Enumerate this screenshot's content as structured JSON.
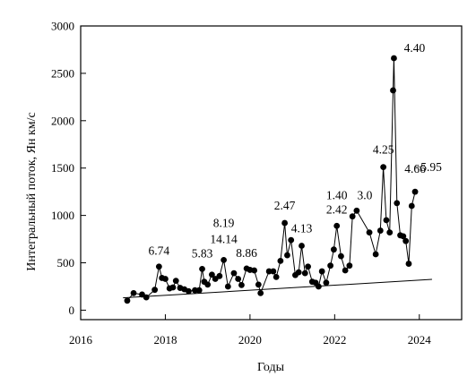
{
  "chart_data": {
    "type": "scatter",
    "title": "",
    "xlabel": "Годы",
    "ylabel": "Интегральный поток, Ян км/с",
    "xlim": [
      2016,
      2025
    ],
    "ylim": [
      -100,
      3000
    ],
    "xticks": [
      2016,
      2018,
      2020,
      2022,
      2024
    ],
    "xtick_labels": [
      "2016",
      "2018",
      "2020",
      "2022",
      "2024"
    ],
    "yticks": [
      0,
      500,
      1000,
      1500,
      2000,
      2500,
      3000
    ],
    "ytick_labels": [
      "0",
      "500",
      "1000",
      "1500",
      "2000",
      "2500",
      "3000"
    ],
    "grid": false,
    "legend": "none",
    "series": [
      {
        "points": [
          [
            2017.1,
            100
          ],
          [
            2017.25,
            180
          ],
          [
            2017.45,
            165
          ],
          [
            2017.55,
            135
          ],
          [
            2017.75,
            215
          ],
          [
            2017.85,
            460
          ],
          [
            2017.92,
            340
          ],
          [
            2018.0,
            330
          ],
          [
            2018.1,
            230
          ],
          [
            2018.18,
            240
          ],
          [
            2018.25,
            310
          ],
          [
            2018.35,
            235
          ],
          [
            2018.45,
            220
          ],
          [
            2018.55,
            200
          ],
          [
            2018.7,
            210
          ],
          [
            2018.8,
            210
          ],
          [
            2018.87,
            435
          ],
          [
            2018.92,
            300
          ],
          [
            2019.0,
            270
          ],
          [
            2019.1,
            375
          ],
          [
            2019.18,
            330
          ],
          [
            2019.28,
            360
          ],
          [
            2019.38,
            530
          ],
          [
            2019.48,
            250
          ],
          [
            2019.62,
            390
          ],
          [
            2019.72,
            330
          ],
          [
            2019.8,
            265
          ],
          [
            2019.92,
            440
          ],
          [
            2020.0,
            425
          ],
          [
            2020.1,
            420
          ],
          [
            2020.2,
            270
          ],
          [
            2020.25,
            180
          ],
          [
            2020.45,
            410
          ],
          [
            2020.55,
            410
          ],
          [
            2020.62,
            350
          ],
          [
            2020.72,
            520
          ],
          [
            2020.82,
            920
          ],
          [
            2020.88,
            580
          ],
          [
            2020.97,
            740
          ],
          [
            2021.07,
            370
          ],
          [
            2021.15,
            400
          ],
          [
            2021.22,
            680
          ],
          [
            2021.3,
            390
          ],
          [
            2021.37,
            460
          ],
          [
            2021.47,
            300
          ],
          [
            2021.55,
            290
          ],
          [
            2021.62,
            250
          ],
          [
            2021.7,
            410
          ],
          [
            2021.8,
            290
          ],
          [
            2021.9,
            470
          ],
          [
            2021.98,
            640
          ],
          [
            2022.05,
            890
          ],
          [
            2022.15,
            570
          ],
          [
            2022.25,
            420
          ],
          [
            2022.35,
            470
          ],
          [
            2022.42,
            990
          ],
          [
            2022.52,
            1050
          ],
          [
            2022.82,
            820
          ],
          [
            2022.97,
            590
          ],
          [
            2023.08,
            840
          ],
          [
            2023.15,
            1510
          ],
          [
            2023.22,
            950
          ],
          [
            2023.3,
            820
          ],
          [
            2023.38,
            2320
          ],
          [
            2023.4,
            2660
          ],
          [
            2023.47,
            1130
          ],
          [
            2023.55,
            790
          ],
          [
            2023.62,
            780
          ],
          [
            2023.68,
            730
          ],
          [
            2023.75,
            490
          ],
          [
            2023.82,
            1100
          ],
          [
            2023.9,
            1250
          ]
        ]
      }
    ],
    "trend_line": {
      "x": [
        2017.0,
        2024.3
      ],
      "y": [
        130,
        325
      ]
    },
    "annotations": [
      {
        "text": "6.74",
        "x": 2017.85,
        "y": 460
      },
      {
        "text": "5.83",
        "x": 2018.87,
        "y": 435
      },
      {
        "text": "8.19",
        "x": 2019.38,
        "y": 530
      },
      {
        "text": "14.14",
        "x": 2019.38,
        "y": 530
      },
      {
        "text": "8.86",
        "x": 2019.92,
        "y": 440
      },
      {
        "text": "2.47",
        "x": 2020.82,
        "y": 920
      },
      {
        "text": "4.13",
        "x": 2021.22,
        "y": 680
      },
      {
        "text": "1.40",
        "x": 2022.05,
        "y": 890
      },
      {
        "text": "2.42",
        "x": 2022.05,
        "y": 890
      },
      {
        "text": "3.0",
        "x": 2022.52,
        "y": 1050
      },
      {
        "text": "4.25",
        "x": 2023.15,
        "y": 1510
      },
      {
        "text": "4.40",
        "x": 2023.4,
        "y": 2660
      },
      {
        "text": "−5.95",
        "x": 2023.82,
        "y": 1100
      },
      {
        "text": "4.66",
        "x": 2023.9,
        "y": 1250
      }
    ]
  }
}
